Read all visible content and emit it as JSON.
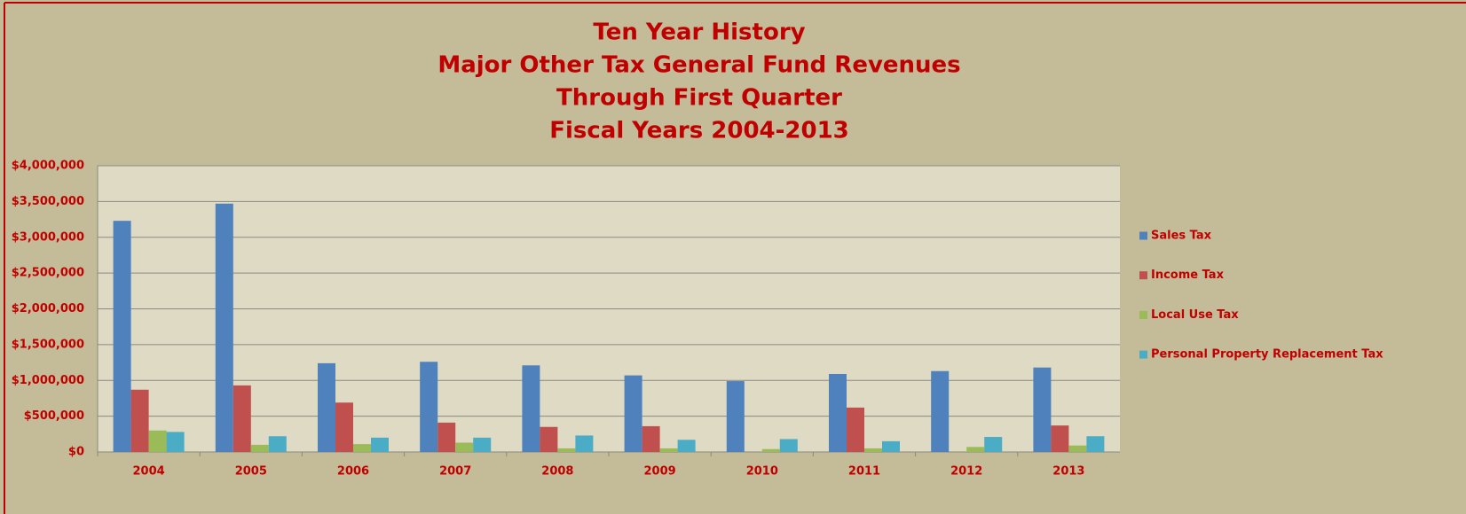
{
  "chart_data": {
    "type": "bar",
    "title": [
      "Ten Year History",
      "Major Other Tax General Fund Revenues",
      "Through First Quarter",
      "Fiscal Years 2004-2013"
    ],
    "categories": [
      "2004",
      "2005",
      "2006",
      "2007",
      "2008",
      "2009",
      "2010",
      "2011",
      "2012",
      "2013"
    ],
    "series": [
      {
        "name": "Sales Tax",
        "color": "#4f81bd",
        "values": [
          3230000,
          3470000,
          1240000,
          1260000,
          1210000,
          1070000,
          990000,
          1090000,
          1130000,
          1180000
        ]
      },
      {
        "name": "Income Tax",
        "color": "#c0504d",
        "values": [
          870000,
          930000,
          690000,
          410000,
          350000,
          360000,
          0,
          620000,
          0,
          370000
        ]
      },
      {
        "name": "Local Use Tax",
        "color": "#9bbb59",
        "values": [
          300000,
          100000,
          110000,
          130000,
          50000,
          50000,
          40000,
          50000,
          70000,
          90000
        ]
      },
      {
        "name": "Personal Property Replacement Tax",
        "color": "#4bacc6",
        "values": [
          280000,
          220000,
          200000,
          200000,
          230000,
          170000,
          180000,
          150000,
          210000,
          220000
        ]
      }
    ],
    "ylim": [
      0,
      4000000
    ],
    "yticks": [
      {
        "value": 0,
        "label": "$0"
      },
      {
        "value": 500000,
        "label": "$500,000"
      },
      {
        "value": 1000000,
        "label": "$1,000,000"
      },
      {
        "value": 1500000,
        "label": "$1,500,000"
      },
      {
        "value": 2000000,
        "label": "$2,000,000"
      },
      {
        "value": 2500000,
        "label": "$2,500,000"
      },
      {
        "value": 3000000,
        "label": "$3,000,000"
      },
      {
        "value": 3500000,
        "label": "$3,500,000"
      },
      {
        "value": 4000000,
        "label": "$4,000,000"
      }
    ],
    "grid": true,
    "legend": "right"
  }
}
